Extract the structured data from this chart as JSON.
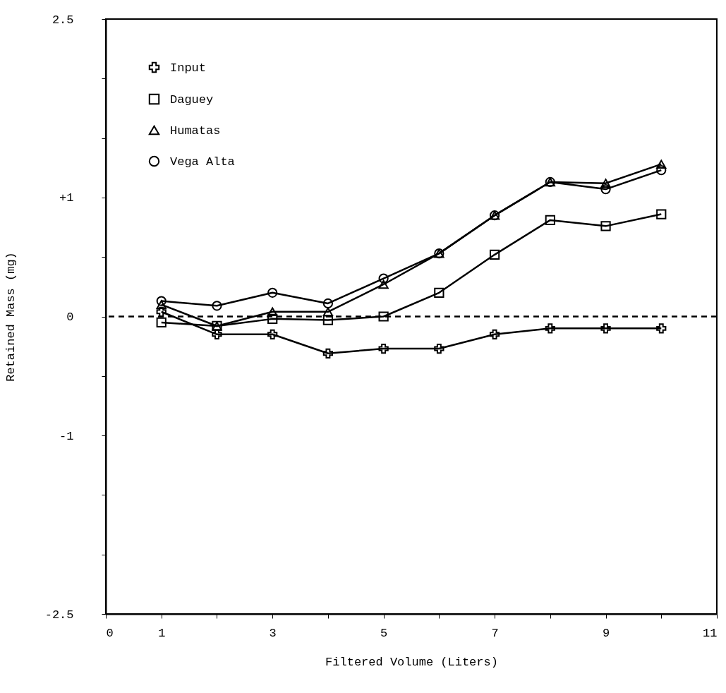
{
  "chart_data": {
    "type": "line",
    "xlabel": "Filtered Volume (Liters)",
    "ylabel": "Retained Mass (mg)",
    "x": [
      1,
      2,
      3,
      4,
      5,
      6,
      7,
      8,
      9,
      10
    ],
    "series": [
      {
        "name": "Input",
        "color": "#000000",
        "marker": "cross",
        "values": [
          0.04,
          -0.15,
          -0.15,
          -0.31,
          -0.27,
          -0.27,
          -0.15,
          -0.1,
          -0.1,
          -0.1
        ]
      },
      {
        "name": "Daguey",
        "color": "#000000",
        "marker": "square",
        "values": [
          -0.05,
          -0.08,
          -0.02,
          -0.03,
          0.0,
          0.2,
          0.52,
          0.81,
          0.76,
          0.86
        ]
      },
      {
        "name": "Humatas",
        "color": "#000000",
        "marker": "triangle",
        "values": [
          0.1,
          -0.08,
          0.04,
          0.04,
          0.27,
          0.53,
          0.85,
          1.13,
          1.12,
          1.28
        ]
      },
      {
        "name": "Vega Alta",
        "color": "#000000",
        "marker": "circle",
        "values": [
          0.13,
          0.09,
          0.2,
          0.11,
          0.32,
          0.53,
          0.85,
          1.13,
          1.07,
          1.23
        ]
      }
    ],
    "xlim": [
      0,
      11
    ],
    "xticks": [
      0,
      1,
      {
        "value": 2,
        "label": null
      },
      3,
      {
        "value": 4,
        "label": null
      },
      5,
      {
        "value": 6,
        "label": null
      },
      7,
      {
        "value": 8,
        "label": null
      },
      9,
      {
        "value": 10,
        "label": null
      },
      11
    ],
    "ylim": [
      -2.5,
      2.5
    ],
    "yticks": [
      -2.5,
      {
        "value": -2,
        "label": null
      },
      {
        "value": -1.5,
        "label": null
      },
      -1,
      {
        "value": -0.5,
        "label": null
      },
      0,
      {
        "value": 0.5,
        "label": null
      },
      {
        "value": 1,
        "label": "+1"
      },
      {
        "value": 1.5,
        "label": null
      },
      {
        "value": 2,
        "label": null
      },
      2.5
    ],
    "ref_lines": [
      {
        "axis": "y",
        "value": 0,
        "line_style": "dashed"
      }
    ],
    "grid": false,
    "legend": "top left",
    "line_style": "solid",
    "marker": "circle"
  }
}
